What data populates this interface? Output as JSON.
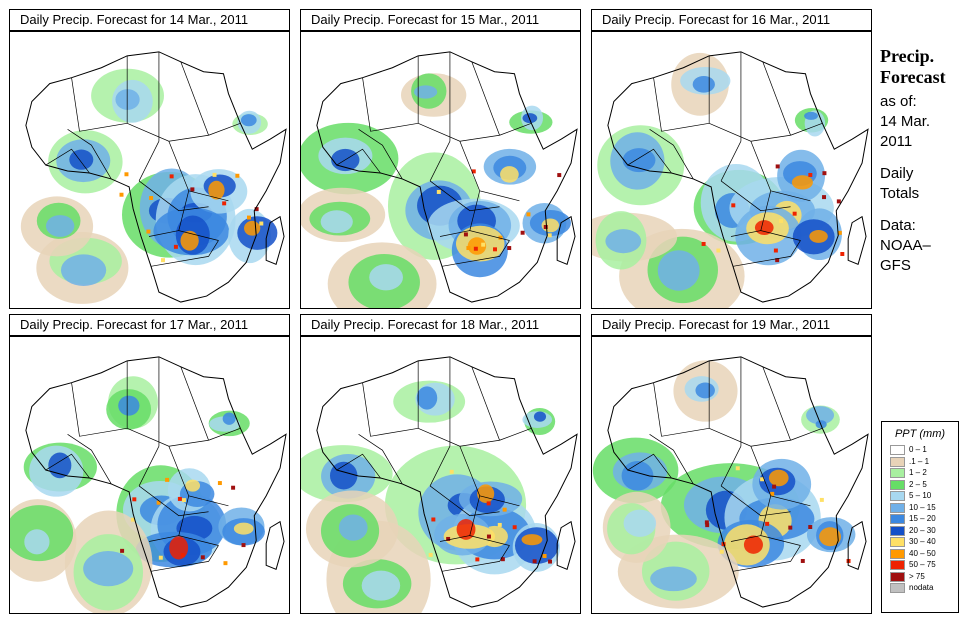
{
  "chart_data": {
    "type": "heatmap",
    "panels": [
      {
        "title": "Daily Precip. Forecast for  14 Mar., 2011",
        "date": "14 Mar., 2011"
      },
      {
        "title": "Daily Precip. Forecast for  15 Mar., 2011",
        "date": "15 Mar., 2011"
      },
      {
        "title": "Daily Precip. Forecast for  16 Mar., 2011",
        "date": "16 Mar., 2011"
      },
      {
        "title": "Daily Precip. Forecast for  17 Mar., 2011",
        "date": "17 Mar., 2011"
      },
      {
        "title": "Daily Precip. Forecast for  18 Mar., 2011",
        "date": "18 Mar., 2011"
      },
      {
        "title": "Daily Precip. Forecast for  19 Mar., 2011",
        "date": "19 Mar., 2011"
      }
    ],
    "legend": {
      "title": "PPT (mm)",
      "placement": "bottom-right",
      "classes": [
        {
          "label": "0 – 1",
          "color": "#ffffff"
        },
        {
          "label": ".1 – 1",
          "color": "#e8d3b8"
        },
        {
          "label": "1 – 2",
          "color": "#a8f0a0"
        },
        {
          "label": "2 – 5",
          "color": "#66dd66"
        },
        {
          "label": "5 – 10",
          "color": "#a8d8f0"
        },
        {
          "label": "10 – 15",
          "color": "#70b0e8"
        },
        {
          "label": "15 – 20",
          "color": "#3c88e0"
        },
        {
          "label": "20 – 30",
          "color": "#1450c8"
        },
        {
          "label": "30 – 40",
          "color": "#ffe066"
        },
        {
          "label": "40 – 50",
          "color": "#ff9900"
        },
        {
          "label": "50 – 75",
          "color": "#ee2200"
        },
        {
          "label": "> 75",
          "color": "#a01010"
        },
        {
          "label": "nodata",
          "color": "#c0c0c0"
        }
      ]
    }
  },
  "info": {
    "heading_line1": "Precip.",
    "heading_line2": "Forecast",
    "asof_label": "as of:",
    "asof_day": "14 Mar.",
    "asof_year": "2011",
    "totals_line1": "Daily",
    "totals_line2": "Totals",
    "data_line1": "Data:",
    "data_line2": "NOAA–",
    "data_line3": "GFS"
  }
}
